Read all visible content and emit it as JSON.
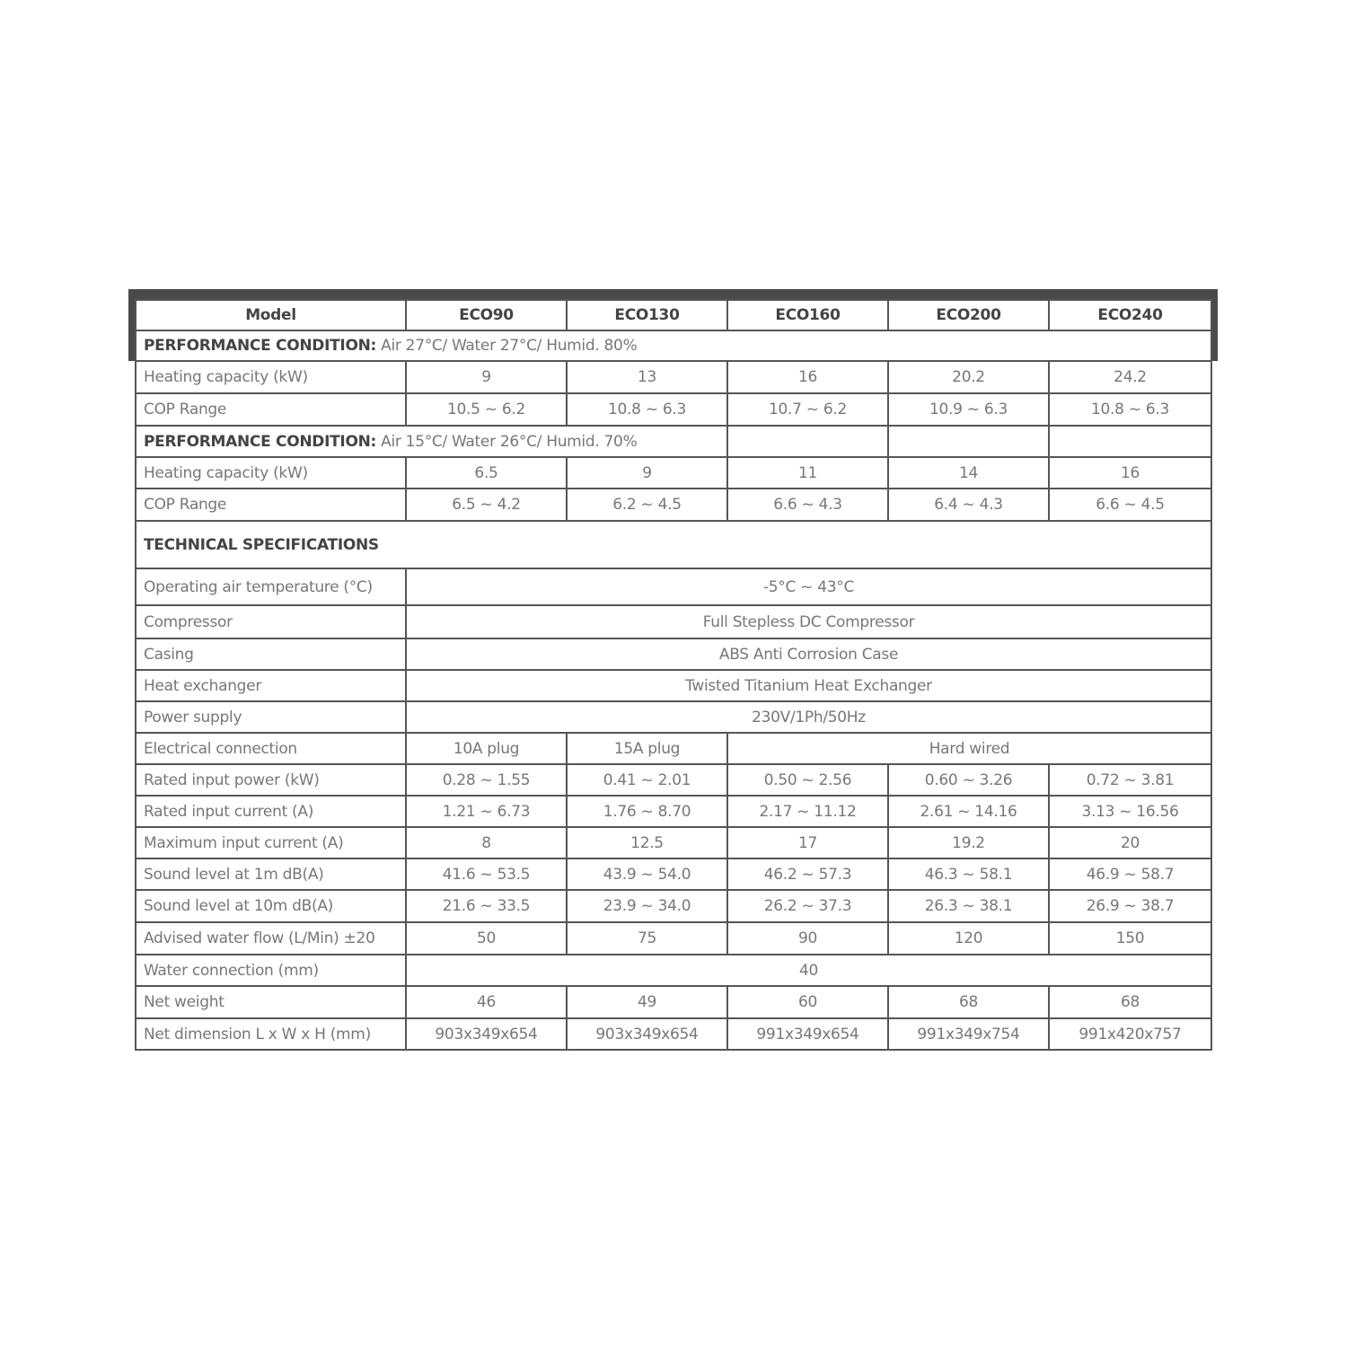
{
  "header": {
    "label": "Model",
    "models": [
      "ECO90",
      "ECO130",
      "ECO160",
      "ECO200",
      "ECO240"
    ]
  },
  "condition1": {
    "title": "PERFORMANCE CONDITION:",
    "text": " Air 27°C/ Water 27°C/ Humid. 80%"
  },
  "perf1": [
    {
      "label": "Heating capacity (kW)",
      "values": [
        "9",
        "13",
        "16",
        "20.2",
        "24.2"
      ]
    },
    {
      "label": "COP Range",
      "values": [
        "10.5 ~ 6.2",
        "10.8 ~ 6.3",
        "10.7 ~ 6.2",
        "10.9 ~ 6.3",
        "10.8 ~ 6.3"
      ]
    }
  ],
  "condition2": {
    "title": "PERFORMANCE CONDITION:",
    "text": " Air 15°C/ Water 26°C/ Humid. 70%"
  },
  "perf2": [
    {
      "label": "Heating capacity (kW)",
      "values": [
        "6.5",
        "9",
        "11",
        "14",
        "16"
      ]
    },
    {
      "label": "COP Range",
      "values": [
        "6.5 ~ 4.2",
        "6.2 ~ 4.5",
        "6.6 ~ 4.3",
        "6.4 ~ 4.3",
        "6.6 ~ 4.5"
      ]
    }
  ],
  "tech_title": "TECHNICAL SPECIFICATIONS",
  "specs": [
    {
      "label": "Operating air temperature (°C)",
      "cells": [
        {
          "text": "-5°C ~ 43°C",
          "span": 5
        }
      ]
    },
    {
      "label": "Compressor",
      "cells": [
        {
          "text": "Full Stepless DC Compressor",
          "span": 5
        }
      ]
    },
    {
      "label": "Casing",
      "cells": [
        {
          "text": "ABS Anti Corrosion Case",
          "span": 5
        }
      ]
    },
    {
      "label": "Heat exchanger",
      "cells": [
        {
          "text": "Twisted Titanium Heat Exchanger",
          "span": 5
        }
      ]
    },
    {
      "label": "Power supply",
      "cells": [
        {
          "text": "230V/1Ph/50Hz",
          "span": 5
        }
      ]
    },
    {
      "label": "Electrical connection",
      "cells": [
        {
          "text": "10A plug",
          "span": 1
        },
        {
          "text": "15A plug",
          "span": 1
        },
        {
          "text": "Hard wired",
          "span": 3
        }
      ]
    },
    {
      "label": "Rated input power (kW)",
      "values": [
        "0.28 ~ 1.55",
        "0.41 ~ 2.01",
        "0.50 ~ 2.56",
        "0.60 ~ 3.26",
        "0.72 ~ 3.81"
      ]
    },
    {
      "label": "Rated input current (A)",
      "values": [
        "1.21 ~ 6.73",
        "1.76 ~ 8.70",
        "2.17 ~ 11.12",
        "2.61 ~ 14.16",
        "3.13 ~ 16.56"
      ]
    },
    {
      "label": "Maximum input current (A)",
      "values": [
        "8",
        "12.5",
        "17",
        "19.2",
        "20"
      ]
    },
    {
      "label": "Sound level at 1m dB(A)",
      "values": [
        "41.6 ~ 53.5",
        "43.9 ~ 54.0",
        "46.2 ~ 57.3",
        "46.3 ~ 58.1",
        "46.9 ~ 58.7"
      ]
    },
    {
      "label": "Sound level at 10m dB(A)",
      "values": [
        "21.6 ~ 33.5",
        "23.9 ~ 34.0",
        "26.2 ~ 37.3",
        "26.3 ~ 38.1",
        "26.9 ~ 38.7"
      ]
    },
    {
      "label": "Advised water flow (L/Min) ±20",
      "values": [
        "50",
        "75",
        "90",
        "120",
        "150"
      ]
    },
    {
      "label": "Water connection (mm)",
      "cells": [
        {
          "text": "40",
          "span": 5
        }
      ]
    },
    {
      "label": "Net weight",
      "values": [
        "46",
        "49",
        "60",
        "68",
        "68"
      ]
    },
    {
      "label": "Net dimension L x W x H (mm)",
      "values": [
        "903x349x654",
        "903x349x654",
        "991x349x654",
        "991x349x754",
        "991x420x757"
      ]
    }
  ]
}
